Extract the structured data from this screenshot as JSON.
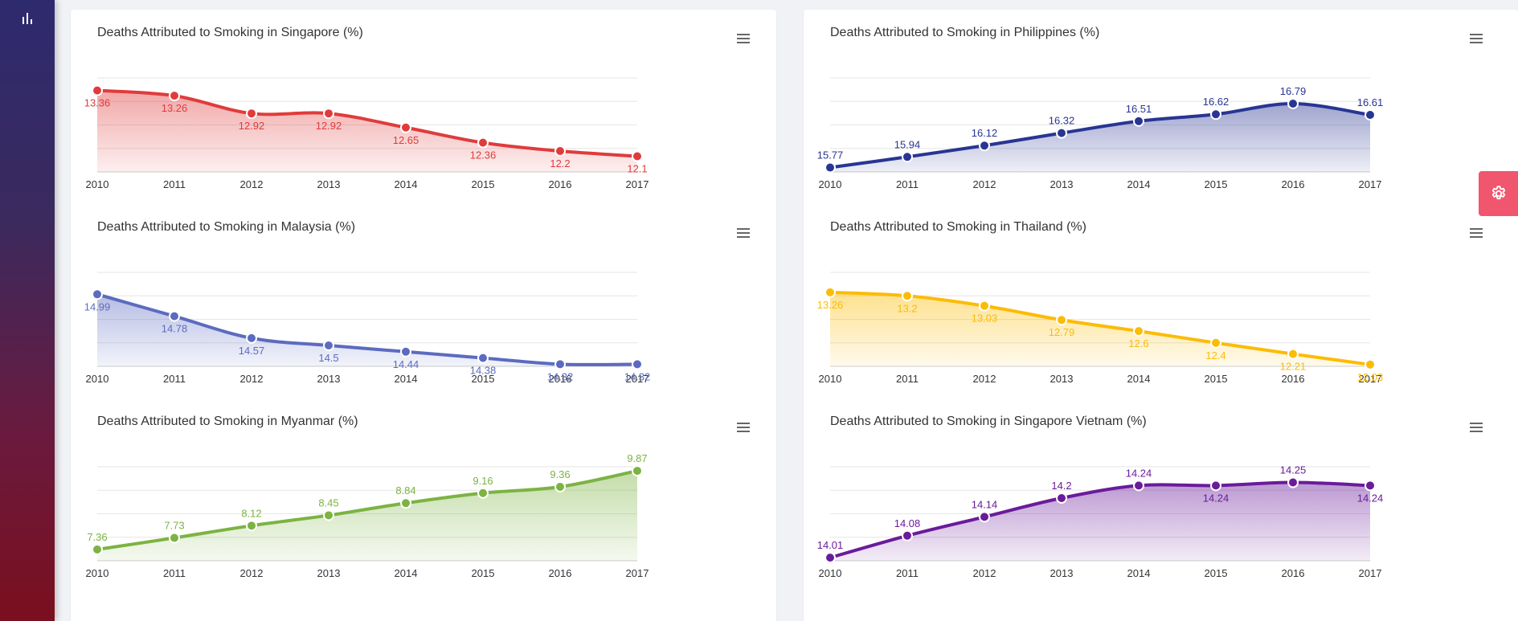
{
  "colors": {
    "singapore": "#e03b3b",
    "philippines": "#283593",
    "malaysia": "#5c6bc0",
    "thailand": "#fbbc05",
    "myanmar": "#7cb342",
    "vietnam": "#6a1b9a"
  },
  "sidebar": {
    "icon": "bar-chart-icon"
  },
  "settings": {
    "icon": "gear-icon"
  },
  "chart_data": [
    {
      "id": "singapore",
      "type": "area",
      "title": "Deaths Attributed to Smoking in Singapore (%)",
      "categories": [
        "2010",
        "2011",
        "2012",
        "2013",
        "2014",
        "2015",
        "2016",
        "2017"
      ],
      "values": [
        13.36,
        13.26,
        12.92,
        12.92,
        12.65,
        12.36,
        12.2,
        12.1
      ],
      "labels": [
        "13.36",
        "13.26",
        "12.92",
        "12.92",
        "12.65",
        "12.36",
        "12.2",
        "12.1"
      ],
      "label_position": "below",
      "ylim": [
        11.8,
        13.6
      ],
      "grid": true,
      "color_key": "singapore"
    },
    {
      "id": "philippines",
      "type": "area",
      "title": "Deaths Attributed to Smoking in Philippines (%)",
      "categories": [
        "2010",
        "2011",
        "2012",
        "2013",
        "2014",
        "2015",
        "2016",
        "2017"
      ],
      "values": [
        15.77,
        15.94,
        16.12,
        16.32,
        16.51,
        16.62,
        16.79,
        16.61
      ],
      "labels": [
        "15.77",
        "15.94",
        "16.12",
        "16.32",
        "16.51",
        "16.62",
        "16.79",
        "16.61"
      ],
      "label_position": "above",
      "ylim": [
        15.7,
        17.2
      ],
      "grid": true,
      "color_key": "philippines"
    },
    {
      "id": "malaysia",
      "type": "area",
      "title": "Deaths Attributed to Smoking in Malaysia (%)",
      "categories": [
        "2010",
        "2011",
        "2012",
        "2013",
        "2014",
        "2015",
        "2016",
        "2017"
      ],
      "values": [
        14.99,
        14.78,
        14.57,
        14.5,
        14.44,
        14.38,
        14.32,
        14.32
      ],
      "labels": [
        "14.99",
        "14.78",
        "14.57",
        "14.5",
        "14.44",
        "14.38",
        "14.32",
        "14.32"
      ],
      "label_position": "below",
      "ylim": [
        14.3,
        15.2
      ],
      "grid": true,
      "color_key": "malaysia"
    },
    {
      "id": "thailand",
      "type": "area",
      "title": "Deaths Attributed to Smoking in Thailand (%)",
      "categories": [
        "2010",
        "2011",
        "2012",
        "2013",
        "2014",
        "2015",
        "2016",
        "2017"
      ],
      "values": [
        13.26,
        13.2,
        13.03,
        12.79,
        12.6,
        12.4,
        12.21,
        12.03
      ],
      "labels": [
        "13.26",
        "13.2",
        "13.03",
        "12.79",
        "12.6",
        "12.4",
        "12.21",
        "12.03"
      ],
      "label_position": "below",
      "ylim": [
        12.0,
        13.6
      ],
      "grid": true,
      "color_key": "thailand"
    },
    {
      "id": "myanmar",
      "type": "area",
      "title": "Deaths Attributed to Smoking in Myanmar (%)",
      "categories": [
        "2010",
        "2011",
        "2012",
        "2013",
        "2014",
        "2015",
        "2016",
        "2017"
      ],
      "values": [
        7.36,
        7.73,
        8.12,
        8.45,
        8.84,
        9.16,
        9.36,
        9.87
      ],
      "labels": [
        "7.36",
        "7.73",
        "8.12",
        "8.45",
        "8.84",
        "9.16",
        "9.36",
        "9.87"
      ],
      "label_position": "above",
      "ylim": [
        7.0,
        10.0
      ],
      "grid": true,
      "color_key": "myanmar"
    },
    {
      "id": "vietnam",
      "type": "area",
      "title": "Deaths Attributed to Smoking in Singapore Vietnam (%)",
      "categories": [
        "2010",
        "2011",
        "2012",
        "2013",
        "2014",
        "2015",
        "2016",
        "2017"
      ],
      "values": [
        14.01,
        14.08,
        14.14,
        14.2,
        14.24,
        14.24,
        14.25,
        14.24
      ],
      "labels": [
        "14.01",
        "14.08",
        "14.14",
        "14.2",
        "14.24",
        "14.24",
        "14.25",
        "14.24"
      ],
      "label_position": "mixed",
      "ylim": [
        14.0,
        14.3
      ],
      "grid": true,
      "color_key": "vietnam"
    }
  ]
}
